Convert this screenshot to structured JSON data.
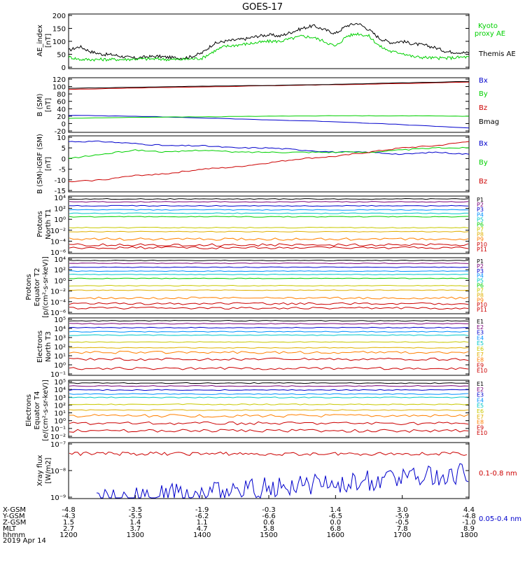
{
  "title": "GOES-17",
  "date_label": "2019 Apr 14",
  "chart_data": [
    {
      "type": "line",
      "panel": "ae_index",
      "ylabel": [
        "AE_index",
        "[nT]"
      ],
      "ylim": [
        0,
        200
      ],
      "ticks": [
        "0",
        "50",
        "100",
        "150",
        "200"
      ],
      "series": [
        {
          "name": "Themis AE",
          "color": "#000000",
          "x": [
            1200,
            1210,
            1220,
            1230,
            1240,
            1250,
            1300,
            1310,
            1320,
            1330,
            1340,
            1350,
            1400,
            1410,
            1420,
            1430,
            1440,
            1450,
            1500,
            1510,
            1520,
            1530,
            1540,
            1550,
            1600,
            1610,
            1620,
            1630,
            1640,
            1650,
            1700,
            1710,
            1720,
            1730,
            1740,
            1750,
            1800
          ],
          "values": [
            65,
            80,
            60,
            50,
            48,
            40,
            35,
            40,
            42,
            38,
            35,
            40,
            55,
            90,
            100,
            105,
            110,
            120,
            125,
            120,
            135,
            150,
            160,
            145,
            130,
            160,
            170,
            145,
            110,
            95,
            100,
            90,
            85,
            75,
            60,
            58,
            55
          ]
        },
        {
          "name": "Kyoto proxy AE",
          "color": "#00d000",
          "x": [
            1200,
            1210,
            1220,
            1230,
            1240,
            1250,
            1300,
            1310,
            1320,
            1330,
            1340,
            1350,
            1400,
            1410,
            1420,
            1430,
            1440,
            1450,
            1500,
            1510,
            1520,
            1530,
            1540,
            1550,
            1600,
            1610,
            1620,
            1630,
            1640,
            1650,
            1700,
            1710,
            1720,
            1730,
            1740,
            1750,
            1800
          ],
          "values": [
            40,
            30,
            30,
            30,
            30,
            30,
            32,
            32,
            32,
            30,
            30,
            32,
            35,
            60,
            80,
            85,
            90,
            95,
            100,
            100,
            110,
            120,
            115,
            100,
            80,
            120,
            130,
            120,
            80,
            60,
            55,
            40,
            38,
            35,
            35,
            38,
            40
          ]
        }
      ],
      "legend_values": [
        "Kyoto",
        "proxy AE",
        "Themis AE"
      ]
    },
    {
      "type": "line",
      "panel": "b_sm",
      "ylabel": [
        "B (SM)",
        "[nT]"
      ],
      "ylim": [
        -20,
        120
      ],
      "ticks": [
        "-20",
        "0",
        "20",
        "40",
        "60",
        "80",
        "100",
        "120"
      ],
      "series": [
        {
          "name": "Bx",
          "color": "#0000cc",
          "x": [
            1200,
            1300,
            1400,
            1500,
            1600,
            1700,
            1800
          ],
          "values": [
            22,
            20,
            15,
            10,
            5,
            -3,
            -12
          ]
        },
        {
          "name": "By",
          "color": "#00d000",
          "x": [
            1200,
            1300,
            1400,
            1500,
            1600,
            1700,
            1800
          ],
          "values": [
            14,
            17,
            18,
            20,
            21,
            21,
            20
          ]
        },
        {
          "name": "Bz",
          "color": "#cc0000",
          "x": [
            1200,
            1300,
            1400,
            1500,
            1600,
            1700,
            1800
          ],
          "values": [
            92,
            96,
            99,
            102,
            105,
            108,
            112
          ]
        },
        {
          "name": "Bmag",
          "color": "#000000",
          "x": [
            1200,
            1300,
            1400,
            1500,
            1600,
            1700,
            1800
          ],
          "values": [
            95,
            98,
            101,
            103,
            106,
            110,
            114
          ]
        }
      ]
    },
    {
      "type": "line",
      "panel": "b_sm_igrf",
      "ylabel": [
        "B (SM)-IGRF (SM)",
        "[nT]"
      ],
      "ylim": [
        -15,
        10
      ],
      "ticks": [
        "-15",
        "-10",
        "-5",
        "0",
        "5",
        "10"
      ],
      "series": [
        {
          "name": "Bx",
          "color": "#0000cc",
          "x": [
            1200,
            1230,
            1300,
            1330,
            1400,
            1430,
            1500,
            1530,
            1600,
            1630,
            1700,
            1730,
            1800
          ],
          "values": [
            8,
            8,
            7,
            6,
            6,
            5,
            5,
            4,
            3,
            3,
            2,
            3,
            2
          ]
        },
        {
          "name": "By",
          "color": "#00d000",
          "x": [
            1200,
            1230,
            1300,
            1330,
            1400,
            1430,
            1500,
            1530,
            1600,
            1630,
            1700,
            1730,
            1800
          ],
          "values": [
            0,
            2,
            4,
            3,
            4,
            3,
            3,
            3,
            3,
            3,
            4,
            5,
            5
          ]
        },
        {
          "name": "Bz",
          "color": "#cc0000",
          "x": [
            1200,
            1230,
            1300,
            1330,
            1400,
            1430,
            1500,
            1530,
            1600,
            1630,
            1700,
            1730,
            1800
          ],
          "values": [
            -11,
            -10,
            -8,
            -7,
            -5,
            -4,
            -2,
            0,
            1,
            3,
            5,
            6,
            8
          ]
        }
      ]
    },
    {
      "type": "line",
      "panel": "protons_t1",
      "ylabel": [
        "Protons",
        "North T1"
      ],
      "scale": "log",
      "ticks": [
        "10⁻⁶",
        "10⁻⁴",
        "10⁻²",
        "10⁰",
        "10²",
        "10⁴"
      ],
      "legend_values": [
        "P1",
        "P2",
        "P3",
        "P4",
        "P5",
        "P6",
        "P7",
        "P8",
        "P9",
        "P10",
        "P11"
      ]
    },
    {
      "type": "line",
      "panel": "protons_t2",
      "ylabel": [
        "Protons",
        "Equator T2",
        "[p/(cm²-s-sr-keV)]"
      ],
      "scale": "log",
      "ticks": [
        "10⁻⁶",
        "10⁻⁴",
        "10⁻²",
        "10⁰",
        "10²",
        "10⁴"
      ],
      "legend_values": [
        "P1",
        "P2",
        "P3",
        "P4",
        "P5",
        "P6",
        "P7",
        "P8",
        "P9",
        "P10",
        "P11"
      ]
    },
    {
      "type": "line",
      "panel": "electrons_t3",
      "ylabel": [
        "Electrons",
        "North T3"
      ],
      "scale": "log",
      "ticks": [
        "10⁻¹",
        "10⁰",
        "10¹",
        "10²",
        "10³",
        "10⁴",
        "10⁵"
      ],
      "legend_values": [
        "E1",
        "E2",
        "E3",
        "E4",
        "E5",
        "E6",
        "E7",
        "E8",
        "E9",
        "E10"
      ]
    },
    {
      "type": "line",
      "panel": "electrons_t4",
      "ylabel": [
        "Electrons",
        "Equator T4",
        "[e/(cm²-s-sr-keV)]"
      ],
      "scale": "log",
      "ticks": [
        "10⁻²",
        "10⁻¹",
        "10⁰",
        "10¹",
        "10²",
        "10³",
        "10⁴",
        "10⁵"
      ],
      "legend_values": [
        "E1",
        "E2",
        "E3",
        "E4",
        "E5",
        "E6",
        "E7",
        "E8",
        "E9",
        "E10"
      ]
    },
    {
      "type": "line",
      "panel": "xray",
      "ylabel": [
        "Xray flux",
        "[W/m2]"
      ],
      "scale": "log",
      "ticks": [
        "10⁻⁹",
        "10⁻⁸",
        "10⁻⁷"
      ],
      "series": [
        {
          "name": "0.1-0.8 nm",
          "color": "#cc0000"
        },
        {
          "name": "0.05-0.4 nm",
          "color": "#0000cc"
        }
      ]
    }
  ],
  "xaxis": {
    "row_labels": [
      "X-GSM",
      "Y-GSM",
      "Z-GSM",
      "MLT",
      "hhmm"
    ],
    "columns": [
      {
        "x": 1200,
        "values": [
          "-4.8",
          "-4.3",
          "1.5",
          "2.7",
          "1200"
        ]
      },
      {
        "x": 1300,
        "values": [
          "-3.5",
          "-5.5",
          "1.4",
          "3.7",
          "1300"
        ]
      },
      {
        "x": 1400,
        "values": [
          "-1.9",
          "-6.2",
          "1.1",
          "4.7",
          "1400"
        ]
      },
      {
        "x": 1500,
        "values": [
          "-0.3",
          "-6.6",
          "0.6",
          "5.8",
          "1500"
        ]
      },
      {
        "x": 1600,
        "values": [
          "1.4",
          "-6.5",
          "0.0",
          "6.8",
          "1600"
        ]
      },
      {
        "x": 1700,
        "values": [
          "3.0",
          "-5.9",
          "-0.5",
          "7.8",
          "1700"
        ]
      },
      {
        "x": 1800,
        "values": [
          "4.4",
          "-4.8",
          "-1.0",
          "8.9",
          "1800"
        ]
      }
    ]
  },
  "colors": {
    "P1": "#000000",
    "P2": "#7a007a",
    "P3": "#0000cc",
    "P4": "#0090ff",
    "P5": "#00c8c8",
    "P6": "#00d000",
    "P7": "#c8c800",
    "P8": "#e0b000",
    "P9": "#ff8000",
    "P10": "#cc0000",
    "P11": "#cc0000",
    "E1": "#000000",
    "E2": "#7a007a",
    "E3": "#0000cc",
    "E4": "#0090ff",
    "E5": "#00c8c8",
    "E6": "#c8c800",
    "E7": "#e0b000",
    "E8": "#ff8000",
    "E9": "#cc0000",
    "E10": "#cc0000"
  }
}
